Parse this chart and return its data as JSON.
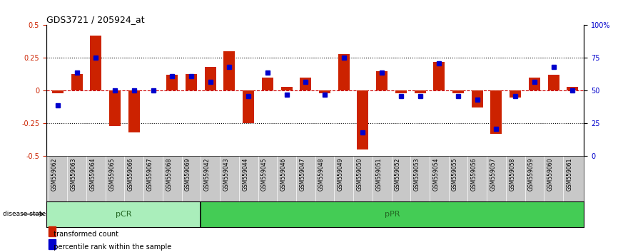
{
  "title": "GDS3721 / 205924_at",
  "samples": [
    "GSM559062",
    "GSM559063",
    "GSM559064",
    "GSM559065",
    "GSM559066",
    "GSM559067",
    "GSM559068",
    "GSM559069",
    "GSM559042",
    "GSM559043",
    "GSM559044",
    "GSM559045",
    "GSM559046",
    "GSM559047",
    "GSM559048",
    "GSM559049",
    "GSM559050",
    "GSM559051",
    "GSM559052",
    "GSM559053",
    "GSM559054",
    "GSM559055",
    "GSM559056",
    "GSM559057",
    "GSM559058",
    "GSM559059",
    "GSM559060",
    "GSM559061"
  ],
  "transformed_count": [
    -0.02,
    0.13,
    0.42,
    -0.27,
    -0.32,
    0.0,
    0.12,
    0.13,
    0.18,
    0.3,
    -0.25,
    0.1,
    0.03,
    0.1,
    -0.02,
    0.28,
    -0.45,
    0.15,
    -0.02,
    -0.02,
    0.22,
    -0.02,
    -0.13,
    -0.33,
    -0.05,
    0.1,
    0.12,
    0.03
  ],
  "percentile_rank": [
    39,
    64,
    75,
    50,
    50,
    50,
    61,
    61,
    57,
    68,
    46,
    64,
    47,
    57,
    47,
    75,
    18,
    64,
    46,
    46,
    71,
    46,
    43,
    21,
    46,
    57,
    68,
    50
  ],
  "group_boundary": 8,
  "ylim_left": [
    -0.5,
    0.5
  ],
  "ylim_right": [
    0,
    100
  ],
  "yticks_left": [
    -0.5,
    -0.25,
    0.0,
    0.25,
    0.5
  ],
  "yticks_right": [
    0,
    25,
    50,
    75,
    100
  ],
  "right_ylabels": [
    "0",
    "25",
    "50",
    "75",
    "100%"
  ],
  "bar_color": "#CC2200",
  "dot_color": "#0000CC",
  "zero_line_color": "#CC0000",
  "background_xtick": "#C8C8C8",
  "pCR_color": "#AAEEBB",
  "pPR_color": "#44CC55",
  "group_label_pCR": "pCR",
  "group_label_pPR": "pPR",
  "disease_state_label": "disease state",
  "legend_tc": "transformed count",
  "legend_pr": "percentile rank within the sample"
}
